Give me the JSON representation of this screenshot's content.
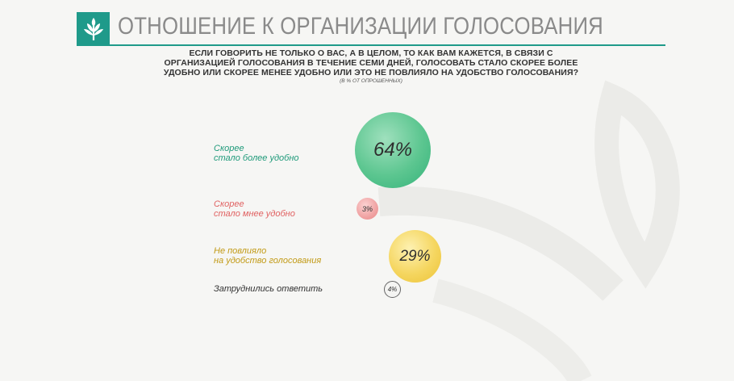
{
  "header": {
    "title": "ОТНОШЕНИЕ К ОРГАНИЗАЦИИ ГОЛОСОВАНИЯ",
    "logo_icon": "tree-icon",
    "accent": "#1f9a8a"
  },
  "question": {
    "text": "Если говорить не только о Вас, а в целом, то как Вам кажется, в связи с организацией голосования в течение семи дней, голосовать стало скорее более удобно или скорее менее удобно или это не повлияло на удобство голосования?",
    "note": "(в % от опрошенных)"
  },
  "chart_data": {
    "type": "bubble",
    "title": "",
    "unit": "%",
    "categories": [
      "Скорее стало более удобно",
      "Скорее стало мнее удобно",
      "Не повлияло на удобство голосования",
      "Затруднились ответить"
    ],
    "values": [
      64,
      3,
      29,
      4
    ],
    "value_labels": [
      "64%",
      "3%",
      "29%",
      "4%"
    ],
    "colors": [
      "#2fb37a",
      "#e36a6a",
      "#e3b825",
      "#777777"
    ]
  },
  "items": [
    {
      "label_lines": [
        "Скорее",
        "стало более удобно"
      ],
      "value_label": "64%"
    },
    {
      "label_lines": [
        "Скорее",
        "стало мнее удобно"
      ],
      "value_label": "3%"
    },
    {
      "label_lines": [
        "Не повлияло",
        "на удобство голосования"
      ],
      "value_label": "29%"
    },
    {
      "label_lines": [
        "Затруднились ответить"
      ],
      "value_label": "4%"
    }
  ]
}
